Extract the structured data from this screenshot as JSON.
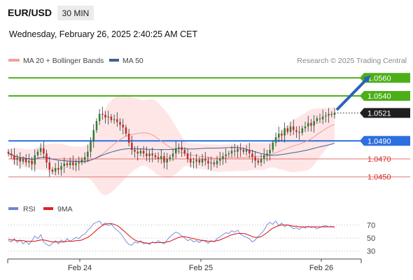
{
  "header": {
    "symbol": "EUR/USD",
    "timeframe": "30 MIN",
    "timestamp": "Wednesday, February 26, 2025 2:40:25 AM CET"
  },
  "legend": {
    "ma20": "MA 20 + Bollinger Bands",
    "ma50": "MA 50",
    "credit": "Research © 2025 Trading Central"
  },
  "rsi_legend": {
    "rsi": "RSI",
    "ma": "9MA"
  },
  "colors": {
    "bull": "#2e7d32",
    "bear": "#c62828",
    "bollinger": "#ffd6d6",
    "ma20": "#ef9a9a",
    "ma50": "#3f5f9a",
    "target": "#4caf17",
    "pivot": "#2d6fe0",
    "support": "#e57373",
    "last": "#222222",
    "arrow": "#2a62b8",
    "rsi": "#6b86d6",
    "rsi_ma": "#e02020"
  },
  "chart_data": [
    {
      "type": "candlestick",
      "title": "EUR/USD",
      "y_range": [
        1.0435,
        1.0575
      ],
      "x_labels": [
        "Feb 24",
        "Feb 25",
        "Feb 26"
      ],
      "levels": [
        {
          "value": 1.056,
          "label": "1.0560",
          "kind": "target"
        },
        {
          "value": 1.054,
          "label": "1.0540",
          "kind": "target"
        },
        {
          "value": 1.0521,
          "label": "1.0521",
          "kind": "last"
        },
        {
          "value": 1.049,
          "label": "1.0490",
          "kind": "pivot"
        },
        {
          "value": 1.047,
          "label": "1.0470",
          "kind": "support"
        },
        {
          "value": 1.045,
          "label": "1.0450",
          "kind": "support"
        }
      ],
      "closes": [
        1.0476,
        1.0474,
        1.0469,
        1.0471,
        1.0467,
        1.047,
        1.0466,
        1.0468,
        1.0464,
        1.0474,
        1.0478,
        1.0482,
        1.0476,
        1.0466,
        1.0458,
        1.0456,
        1.046,
        1.0458,
        1.0462,
        1.0465,
        1.0463,
        1.0466,
        1.0463,
        1.0465,
        1.0466,
        1.0469,
        1.0472,
        1.0478,
        1.049,
        1.0502,
        1.0512,
        1.052,
        1.0519,
        1.0516,
        1.0517,
        1.0513,
        1.0514,
        1.0511,
        1.0508,
        1.0505,
        1.0498,
        1.0488,
        1.048,
        1.0478,
        1.0476,
        1.0479,
        1.0476,
        1.0473,
        1.0476,
        1.0474,
        1.0472,
        1.047,
        1.0473,
        1.0466,
        1.047,
        1.0472,
        1.0476,
        1.0482,
        1.0483,
        1.048,
        1.0476,
        1.047,
        1.0466,
        1.0467,
        1.0469,
        1.0466,
        1.047,
        1.0468,
        1.0465,
        1.0466,
        1.0464,
        1.0468,
        1.047,
        1.0473,
        1.0475,
        1.0476,
        1.0479,
        1.0478,
        1.0481,
        1.048,
        1.0478,
        1.048,
        1.0476,
        1.0472,
        1.0468,
        1.0466,
        1.047,
        1.0474,
        1.0476,
        1.048,
        1.0488,
        1.0494,
        1.0498,
        1.0496,
        1.0504,
        1.05,
        1.0506,
        1.0502,
        1.05,
        1.0499,
        1.0504,
        1.0506,
        1.051,
        1.0507,
        1.0512,
        1.0515,
        1.0514,
        1.0517,
        1.0518,
        1.052,
        1.0519,
        1.0521
      ]
    },
    {
      "type": "line",
      "title": "RSI",
      "y_range": [
        20,
        80
      ],
      "y_ticks": [
        30,
        50,
        70
      ],
      "series": [
        {
          "name": "RSI",
          "values": [
            46,
            44,
            49,
            43,
            47,
            41,
            45,
            40,
            46,
            53,
            49,
            55,
            44,
            40,
            38,
            42,
            46,
            41,
            47,
            44,
            49,
            45,
            48,
            51,
            49,
            54,
            56,
            62,
            66,
            72,
            74,
            76,
            70,
            73,
            69,
            71,
            66,
            62,
            58,
            52,
            45,
            40,
            39,
            44,
            42,
            46,
            41,
            43,
            40,
            44,
            42,
            46,
            43,
            41,
            47,
            52,
            56,
            59,
            57,
            53,
            50,
            46,
            48,
            44,
            46,
            43,
            47,
            45,
            42,
            46,
            44,
            49,
            52,
            55,
            58,
            57,
            61,
            59,
            62,
            56,
            53,
            51,
            49,
            44,
            47,
            52,
            57,
            62,
            70,
            74,
            71,
            76,
            69,
            73,
            67,
            70,
            68,
            64,
            66,
            63,
            67,
            65,
            68,
            66,
            67,
            64,
            66,
            68,
            69,
            67,
            68,
            66
          ]
        },
        {
          "name": "9MA",
          "values": [
            48,
            47,
            47,
            46,
            46,
            46,
            45,
            45,
            45,
            45,
            46,
            47,
            47,
            46,
            45,
            44,
            44,
            44,
            44,
            44,
            45,
            45,
            45,
            46,
            46,
            47,
            49,
            51,
            54,
            58,
            62,
            66,
            69,
            71,
            72,
            72,
            71,
            69,
            66,
            62,
            58,
            54,
            50,
            47,
            45,
            44,
            43,
            42,
            42,
            43,
            43,
            43,
            43,
            43,
            44,
            45,
            47,
            49,
            51,
            52,
            52,
            51,
            50,
            49,
            48,
            47,
            46,
            46,
            45,
            45,
            45,
            46,
            47,
            49,
            51,
            53,
            55,
            56,
            57,
            57,
            57,
            56,
            54,
            52,
            51,
            51,
            52,
            55,
            58,
            62,
            65,
            67,
            69,
            70,
            70,
            70,
            69,
            68,
            68,
            67,
            67,
            67,
            67,
            67,
            67,
            67,
            67,
            67,
            67,
            67,
            67,
            67
          ]
        }
      ]
    }
  ]
}
